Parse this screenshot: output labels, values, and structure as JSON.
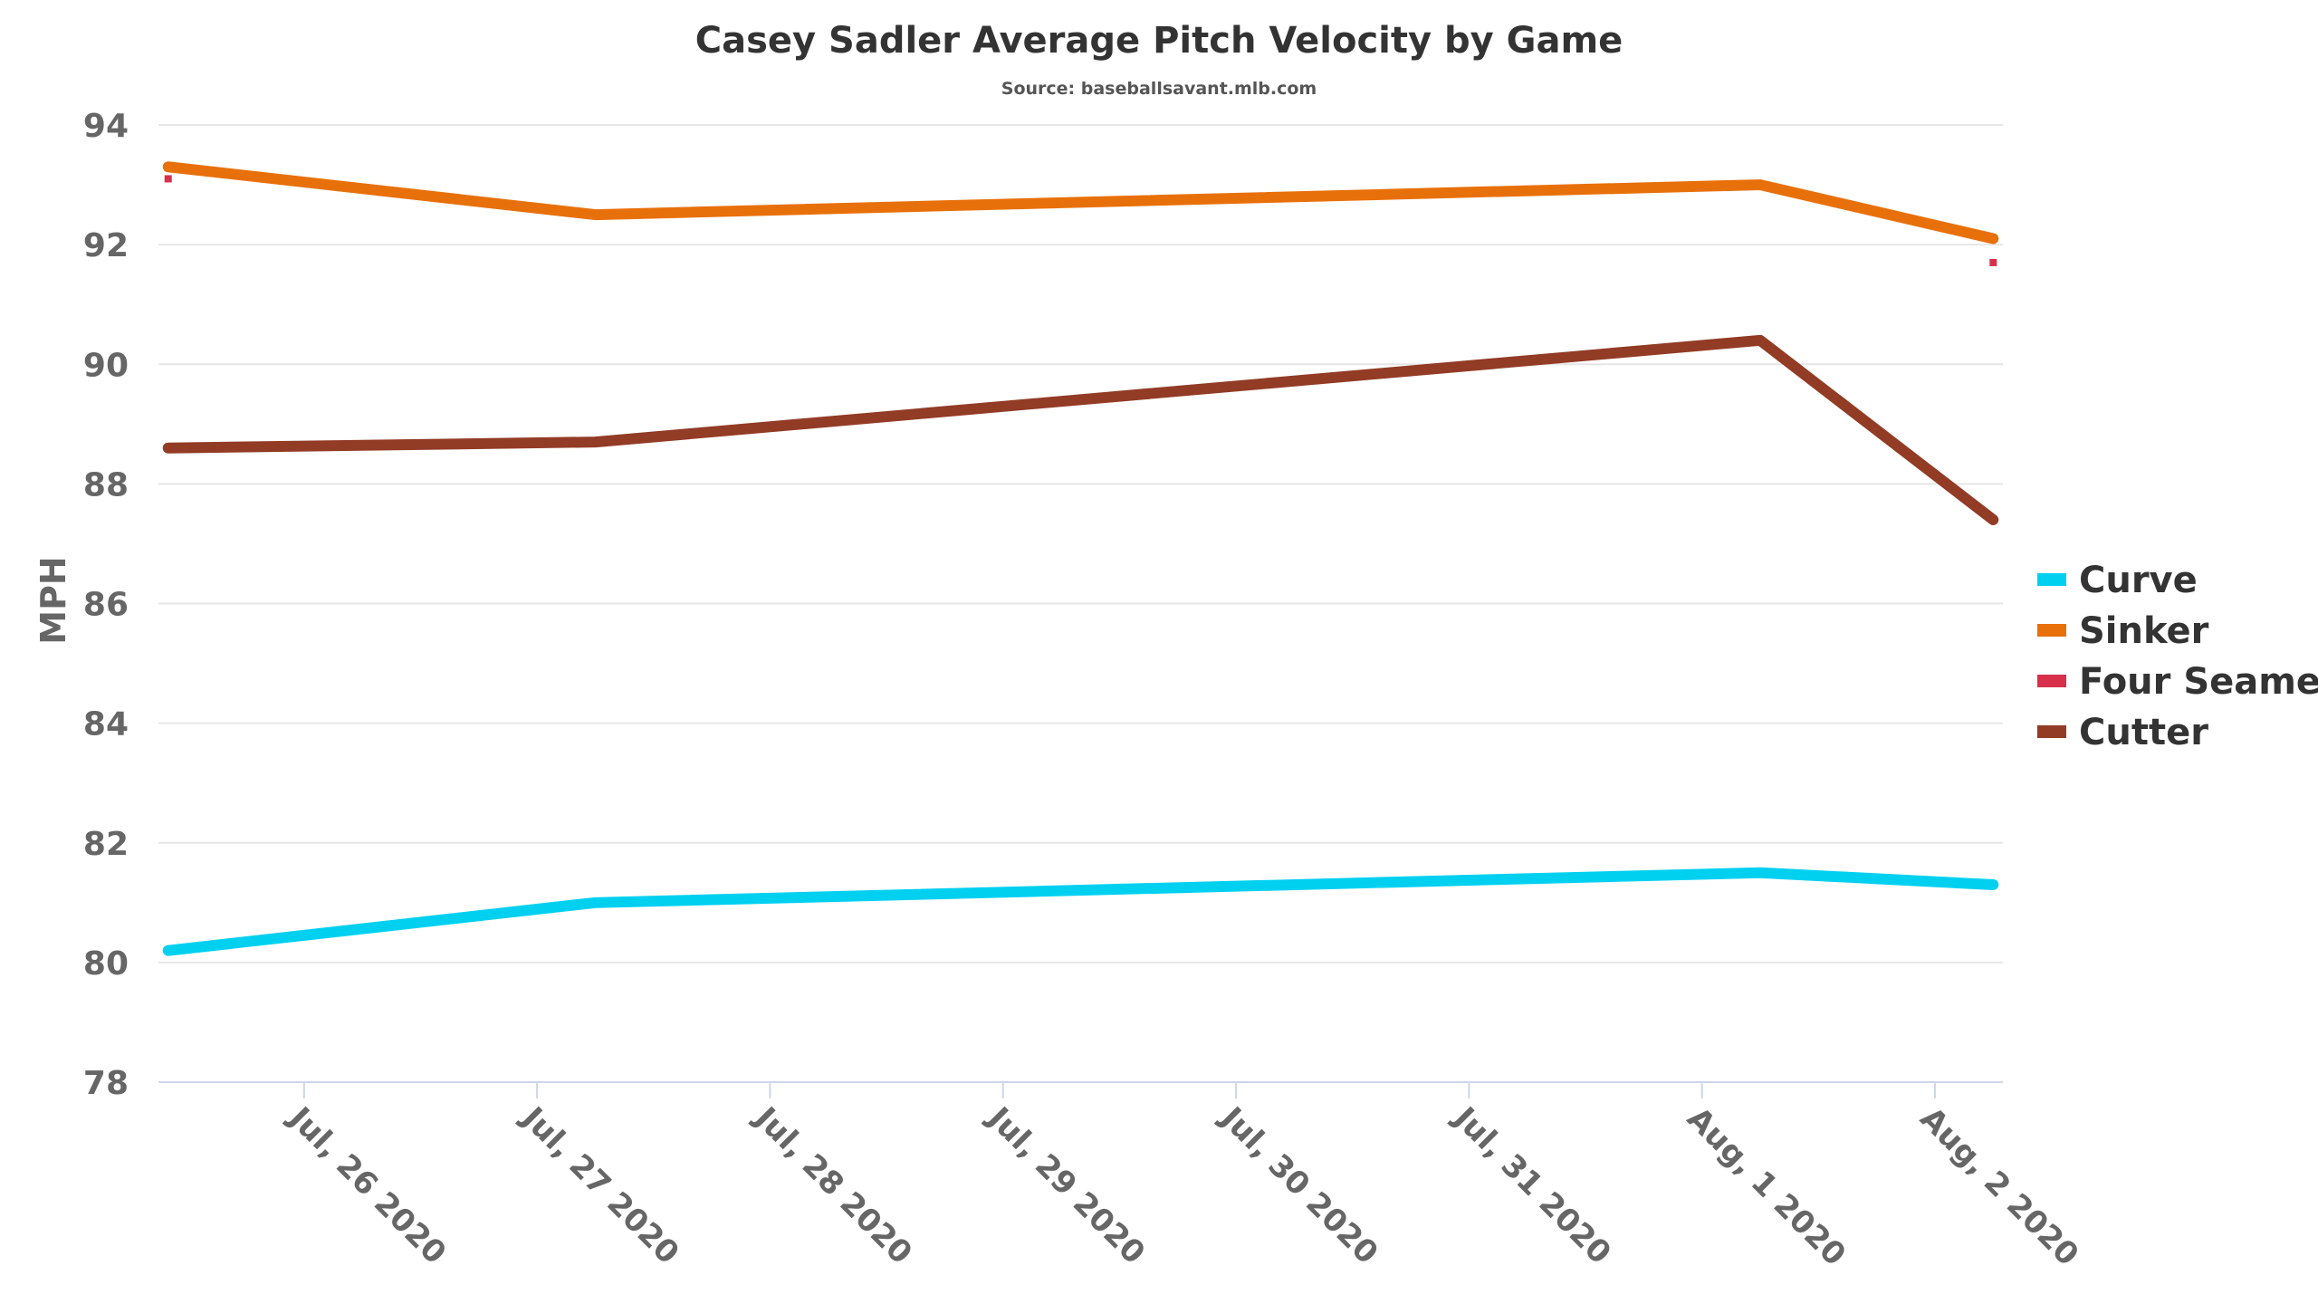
{
  "chart_data": {
    "type": "line",
    "title": "Casey Sadler Average Pitch Velocity by Game",
    "subtitle": "Source: baseballsavant.mlb.com",
    "xlabel": "",
    "ylabel": "MPH",
    "ylim": [
      78,
      94
    ],
    "yticks": [
      78,
      80,
      82,
      84,
      86,
      88,
      90,
      92,
      94
    ],
    "x_ticks": [
      "Jul, 26 2020",
      "Jul, 27 2020",
      "Jul, 28 2020",
      "Jul, 29 2020",
      "Jul, 30 2020",
      "Jul, 31 2020",
      "Aug, 1 2020",
      "Aug, 2 2020"
    ],
    "xlim": [
      "2020-07-25T09:00",
      "2020-08-02T07:00"
    ],
    "x": [
      "2020-07-25T10:00",
      "2020-07-27T06:00",
      "2020-08-01T06:00",
      "2020-08-02T06:00"
    ],
    "grid": true,
    "legend": "right",
    "series": [
      {
        "name": "Curve",
        "color": "#00d0f0",
        "values": [
          80.2,
          81.0,
          81.5,
          81.3
        ]
      },
      {
        "name": "Sinker",
        "color": "#e8700a",
        "values": [
          93.3,
          92.5,
          93.0,
          92.1
        ]
      },
      {
        "name": "Four Seamer",
        "color": "#d8304a",
        "values": [
          93.1,
          null,
          null,
          91.7
        ]
      },
      {
        "name": "Cutter",
        "color": "#923b25",
        "values": [
          88.6,
          88.7,
          90.4,
          87.4
        ]
      }
    ]
  }
}
